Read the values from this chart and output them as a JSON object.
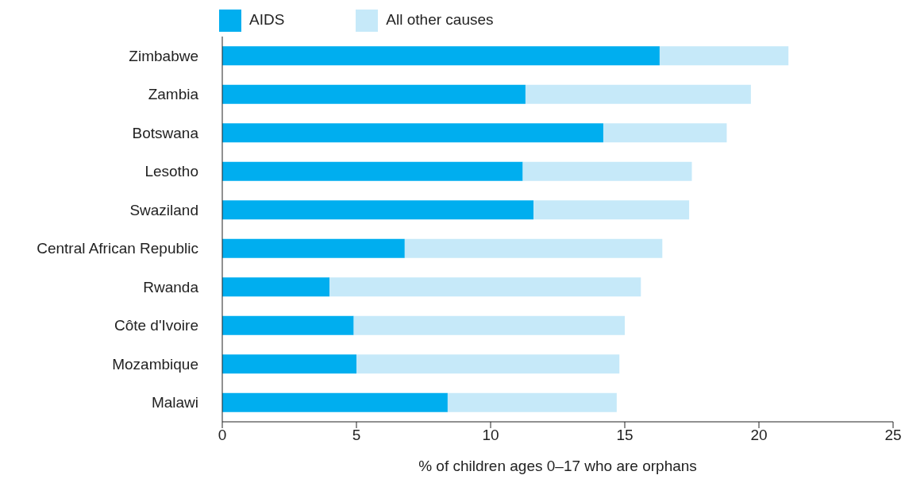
{
  "chart_data": {
    "type": "bar",
    "orientation": "horizontal",
    "stacked": true,
    "xlabel": "% of children ages 0–17 who are orphans",
    "categories": [
      "Zimbabwe",
      "Zambia",
      "Botswana",
      "Lesotho",
      "Swaziland",
      "Central African Republic",
      "Rwanda",
      "Côte d'Ivoire",
      "Mozambique",
      "Malawi"
    ],
    "series": [
      {
        "name": "AIDS",
        "color": "#00aeef",
        "values": [
          16.3,
          11.3,
          14.2,
          11.2,
          11.6,
          6.8,
          4.0,
          4.9,
          5.0,
          8.4
        ]
      },
      {
        "name": "All other causes",
        "color": "#c6e9f9",
        "values": [
          4.8,
          8.4,
          4.6,
          6.3,
          5.8,
          9.6,
          11.6,
          10.1,
          9.8,
          6.3
        ]
      }
    ],
    "xlim": [
      0,
      25
    ],
    "xticks": [
      0,
      5,
      10,
      15,
      20,
      25
    ],
    "grid": false,
    "legend": "top left"
  }
}
